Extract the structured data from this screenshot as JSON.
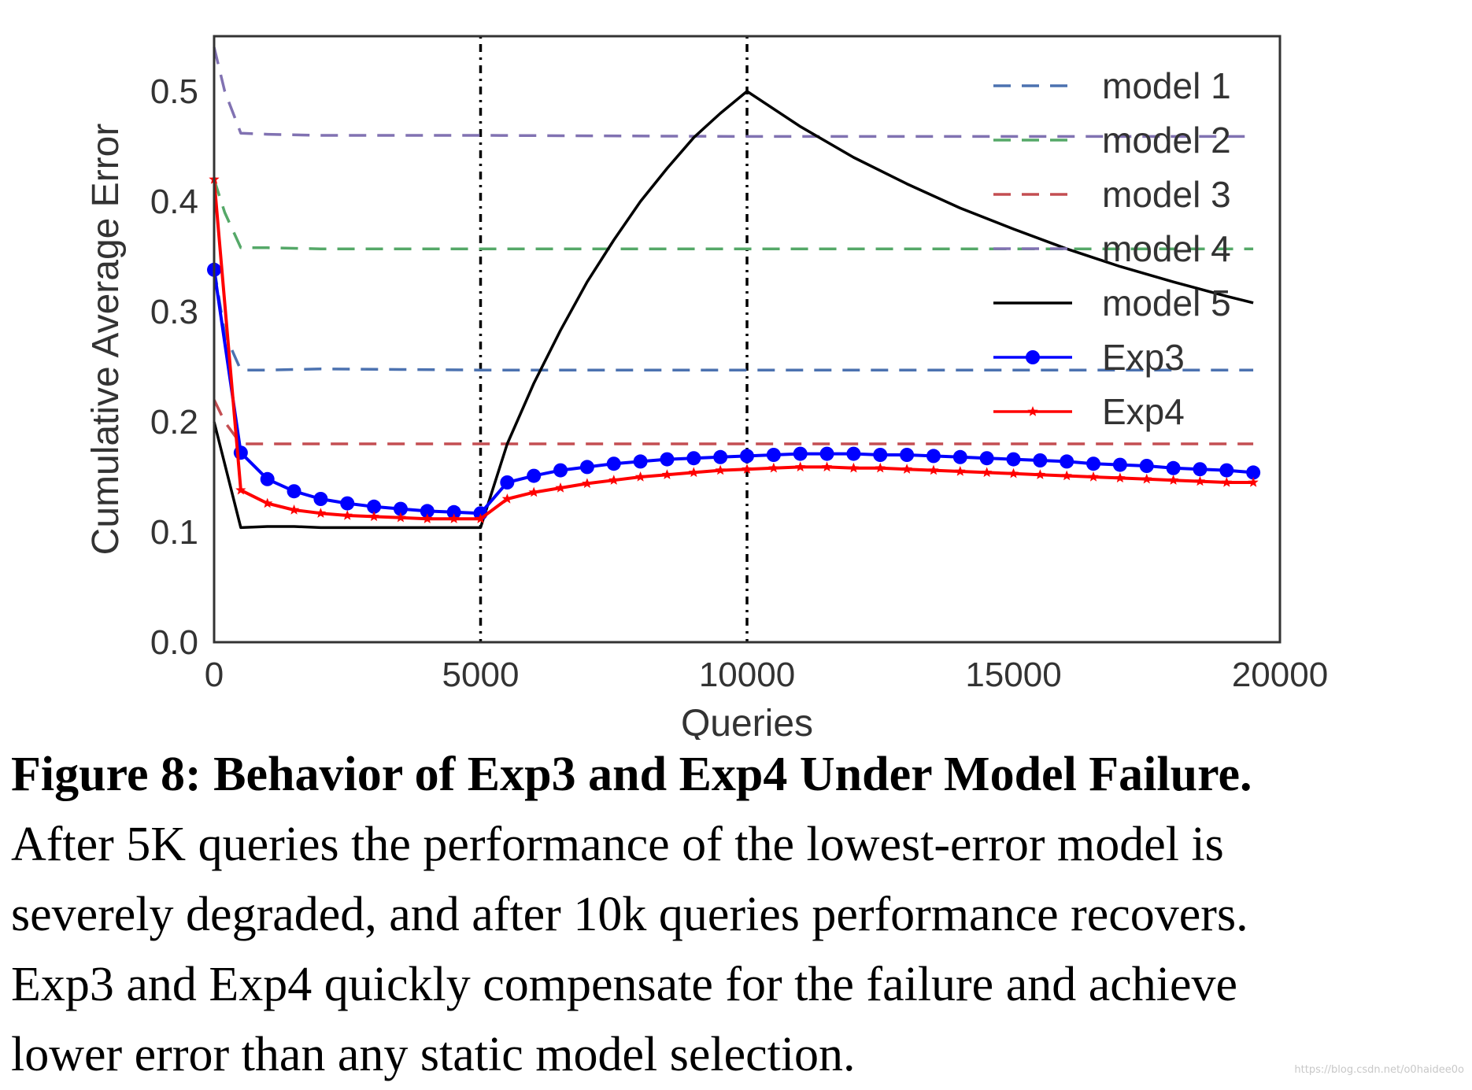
{
  "chart_data": {
    "type": "line",
    "xlabel": "Queries",
    "ylabel": "Cumulative Average Error",
    "xlim": [
      0,
      20000
    ],
    "ylim": [
      0,
      0.55
    ],
    "xticks": [
      0,
      5000,
      10000,
      15000,
      20000
    ],
    "xtick_labels": [
      "0",
      "5000",
      "10000",
      "15000",
      "20000"
    ],
    "yticks": [
      0.0,
      0.1,
      0.2,
      0.3,
      0.4,
      0.5
    ],
    "ytick_labels": [
      "0.0",
      "0.1",
      "0.2",
      "0.3",
      "0.4",
      "0.5"
    ],
    "grid": false,
    "legend_position": "top-right",
    "vlines": [
      5000,
      10000
    ],
    "series": [
      {
        "name": "model 1",
        "style": "dashed",
        "color": "#4c72b0",
        "x": [
          0,
          200,
          500,
          1000,
          2000,
          5000,
          10000,
          15000,
          19500
        ],
        "y": [
          0.34,
          0.28,
          0.247,
          0.247,
          0.248,
          0.247,
          0.247,
          0.247,
          0.247
        ]
      },
      {
        "name": "model 2",
        "style": "dashed",
        "color": "#55a868",
        "x": [
          0,
          200,
          500,
          1000,
          2000,
          5000,
          10000,
          15000,
          19500
        ],
        "y": [
          0.42,
          0.39,
          0.358,
          0.358,
          0.357,
          0.357,
          0.357,
          0.357,
          0.357
        ]
      },
      {
        "name": "model 3",
        "style": "dashed",
        "color": "#c44e52",
        "x": [
          0,
          200,
          500,
          1000,
          2000,
          5000,
          10000,
          15000,
          19500
        ],
        "y": [
          0.22,
          0.2,
          0.18,
          0.18,
          0.18,
          0.18,
          0.18,
          0.18,
          0.18
        ]
      },
      {
        "name": "model 4",
        "style": "dashed",
        "color": "#8172b2",
        "x": [
          0,
          200,
          500,
          1000,
          2000,
          5000,
          10000,
          15000,
          19500
        ],
        "y": [
          0.54,
          0.5,
          0.462,
          0.461,
          0.46,
          0.46,
          0.459,
          0.459,
          0.459
        ]
      },
      {
        "name": "model 5",
        "style": "solid",
        "color": "#000000",
        "x": [
          0,
          500,
          1000,
          1500,
          2000,
          3000,
          4000,
          5000,
          5500,
          6000,
          6500,
          7000,
          7500,
          8000,
          8500,
          9000,
          9500,
          10000,
          11000,
          12000,
          13000,
          14000,
          15000,
          16000,
          17000,
          18000,
          19000,
          19500
        ],
        "y": [
          0.2,
          0.104,
          0.105,
          0.105,
          0.104,
          0.104,
          0.104,
          0.104,
          0.18,
          0.235,
          0.283,
          0.327,
          0.365,
          0.4,
          0.43,
          0.458,
          0.48,
          0.5,
          0.468,
          0.44,
          0.416,
          0.394,
          0.375,
          0.357,
          0.341,
          0.327,
          0.314,
          0.308
        ]
      },
      {
        "name": "Exp3",
        "style": "solid-marker-circle",
        "color": "#0000ff",
        "x": [
          0,
          500,
          1000,
          1500,
          2000,
          2500,
          3000,
          3500,
          4000,
          4500,
          5000,
          5500,
          6000,
          6500,
          7000,
          7500,
          8000,
          8500,
          9000,
          9500,
          10000,
          10500,
          11000,
          11500,
          12000,
          12500,
          13000,
          13500,
          14000,
          14500,
          15000,
          15500,
          16000,
          16500,
          17000,
          17500,
          18000,
          18500,
          19000,
          19500
        ],
        "y": [
          0.338,
          0.172,
          0.148,
          0.137,
          0.13,
          0.126,
          0.123,
          0.121,
          0.119,
          0.118,
          0.117,
          0.145,
          0.151,
          0.156,
          0.159,
          0.162,
          0.164,
          0.166,
          0.167,
          0.168,
          0.169,
          0.17,
          0.171,
          0.171,
          0.171,
          0.17,
          0.17,
          0.169,
          0.168,
          0.167,
          0.166,
          0.165,
          0.164,
          0.162,
          0.161,
          0.16,
          0.158,
          0.157,
          0.156,
          0.154
        ]
      },
      {
        "name": "Exp4",
        "style": "solid-marker-star",
        "color": "#ff0000",
        "x": [
          0,
          500,
          1000,
          1500,
          2000,
          2500,
          3000,
          3500,
          4000,
          4500,
          5000,
          5500,
          6000,
          6500,
          7000,
          7500,
          8000,
          8500,
          9000,
          9500,
          10000,
          10500,
          11000,
          11500,
          12000,
          12500,
          13000,
          13500,
          14000,
          14500,
          15000,
          15500,
          16000,
          16500,
          17000,
          17500,
          18000,
          18500,
          19000,
          19500
        ],
        "y": [
          0.42,
          0.138,
          0.126,
          0.12,
          0.117,
          0.115,
          0.114,
          0.113,
          0.112,
          0.112,
          0.112,
          0.13,
          0.136,
          0.14,
          0.144,
          0.147,
          0.15,
          0.152,
          0.154,
          0.156,
          0.157,
          0.158,
          0.159,
          0.159,
          0.158,
          0.158,
          0.157,
          0.156,
          0.155,
          0.154,
          0.153,
          0.152,
          0.151,
          0.15,
          0.149,
          0.148,
          0.147,
          0.146,
          0.145,
          0.145
        ]
      }
    ]
  },
  "caption": {
    "title": "Figure 8: Behavior of Exp3 and Exp4 Under Model Failure.",
    "lines": [
      "After 5K queries the performance of the lowest-error model is",
      "severely degraded, and after 10k queries performance recovers.",
      "Exp3 and Exp4 quickly compensate for the failure and achieve",
      "lower error than any static model selection."
    ]
  },
  "watermark": "https://blog.csdn.net/o0haidee0o"
}
